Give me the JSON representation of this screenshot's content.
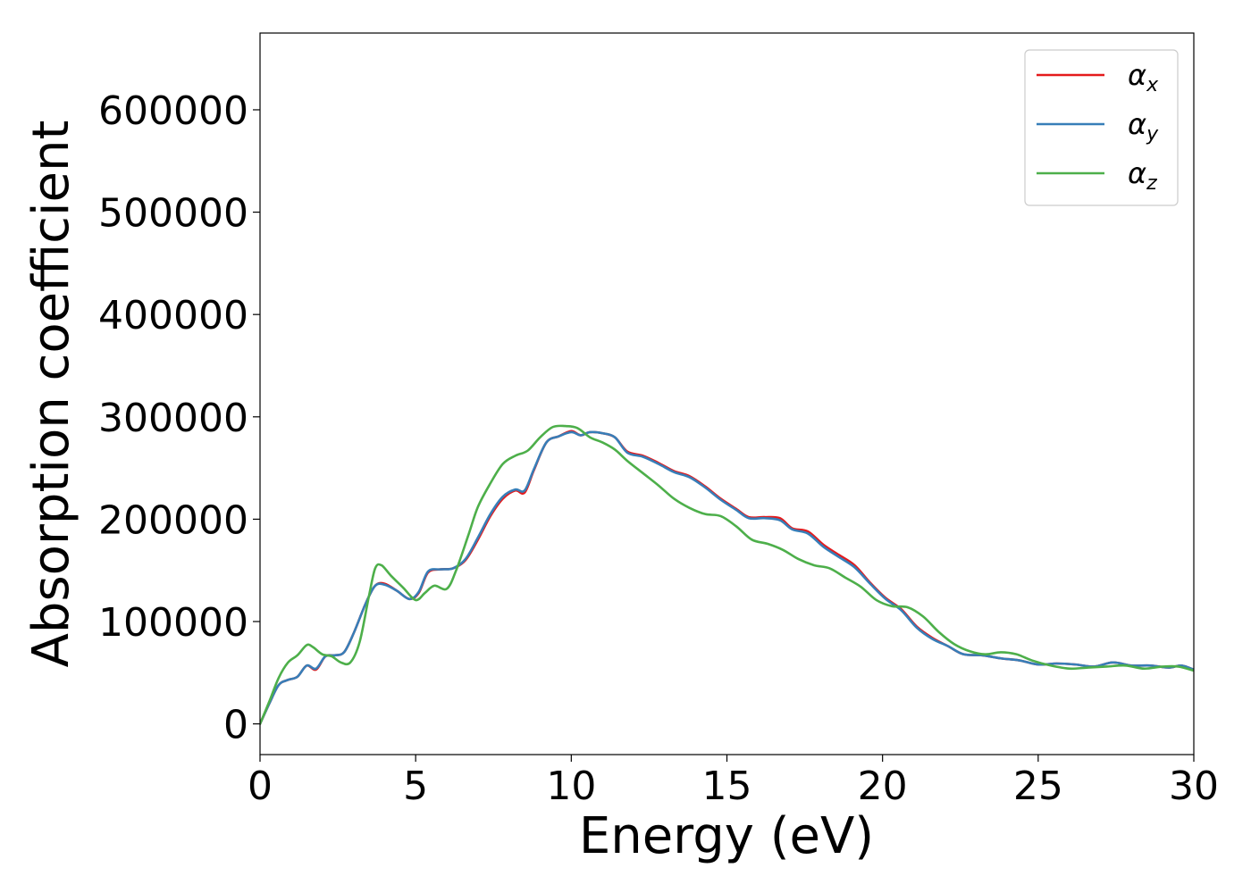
{
  "chart_data": {
    "type": "line",
    "xlabel": "Energy (eV)",
    "ylabel": "Absorption coefficient",
    "xlim": [
      0,
      30
    ],
    "ylim": [
      -30000,
      675000
    ],
    "x_ticks": [
      "0",
      "5",
      "10",
      "15",
      "20",
      "25",
      "30"
    ],
    "y_ticks": [
      "0",
      "100000",
      "200000",
      "300000",
      "400000",
      "500000",
      "600000"
    ],
    "grid": false,
    "legend_position": "top-right",
    "series": [
      {
        "name": "αx",
        "legend_symbol": "α",
        "legend_subscript": "x",
        "color": "#e41a1c",
        "x": [
          0,
          0.3,
          0.6,
          0.9,
          1.2,
          1.5,
          1.8,
          2.1,
          2.4,
          2.7,
          3.0,
          3.4,
          3.7,
          4.0,
          4.4,
          4.8,
          5.1,
          5.4,
          5.8,
          6.2,
          6.6,
          7.0,
          7.4,
          7.8,
          8.2,
          8.5,
          8.8,
          9.2,
          9.6,
          10.0,
          10.3,
          10.6,
          11.0,
          11.4,
          11.8,
          12.3,
          12.8,
          13.3,
          13.8,
          14.3,
          14.8,
          15.3,
          15.7,
          16.2,
          16.7,
          17.1,
          17.6,
          18.1,
          18.6,
          19.1,
          19.6,
          20.1,
          20.6,
          21.1,
          21.6,
          22.1,
          22.6,
          23.2,
          23.8,
          24.4,
          25.0,
          25.6,
          26.2,
          26.8,
          27.4,
          28.0,
          28.6,
          29.2,
          29.6,
          30.0
        ],
        "values": [
          0,
          20000,
          38000,
          43000,
          46000,
          57000,
          53000,
          66000,
          67000,
          70000,
          88000,
          118000,
          135000,
          137000,
          130000,
          122000,
          128000,
          148000,
          151000,
          152000,
          160000,
          180000,
          203000,
          220000,
          228000,
          226000,
          248000,
          275000,
          281000,
          286000,
          282000,
          285000,
          284000,
          280000,
          266000,
          262000,
          255000,
          247000,
          242000,
          232000,
          220000,
          210000,
          202000,
          202000,
          201000,
          191000,
          188000,
          175000,
          165000,
          155000,
          138000,
          123000,
          112000,
          95000,
          84000,
          76000,
          68000,
          67000,
          64000,
          62000,
          58000,
          59000,
          58000,
          56000,
          60000,
          57000,
          57000,
          55000,
          57000,
          53000
        ]
      },
      {
        "name": "αy",
        "legend_symbol": "α",
        "legend_subscript": "y",
        "color": "#377eb8",
        "x": [
          0,
          0.3,
          0.6,
          0.9,
          1.2,
          1.5,
          1.8,
          2.1,
          2.4,
          2.7,
          3.0,
          3.4,
          3.7,
          4.0,
          4.4,
          4.8,
          5.1,
          5.4,
          5.8,
          6.2,
          6.6,
          7.0,
          7.4,
          7.8,
          8.2,
          8.5,
          8.8,
          9.2,
          9.6,
          10.0,
          10.3,
          10.6,
          11.0,
          11.4,
          11.8,
          12.3,
          12.8,
          13.3,
          13.8,
          14.3,
          14.8,
          15.3,
          15.7,
          16.2,
          16.7,
          17.1,
          17.6,
          18.1,
          18.6,
          19.1,
          19.6,
          20.1,
          20.6,
          21.1,
          21.6,
          22.1,
          22.6,
          23.2,
          23.8,
          24.4,
          25.0,
          25.6,
          26.2,
          26.8,
          27.4,
          28.0,
          28.6,
          29.2,
          29.6,
          30.0
        ],
        "values": [
          0,
          20000,
          38000,
          43000,
          46000,
          57000,
          54000,
          66000,
          67000,
          70000,
          88000,
          118000,
          135000,
          136000,
          130000,
          122000,
          129000,
          149000,
          151000,
          152000,
          161000,
          182000,
          205000,
          222000,
          229000,
          228000,
          249000,
          275000,
          281000,
          285000,
          282000,
          285000,
          284000,
          280000,
          265000,
          261000,
          254000,
          246000,
          241000,
          231000,
          219000,
          209000,
          201000,
          201000,
          199000,
          190000,
          186000,
          173000,
          163000,
          153000,
          137000,
          122000,
          111000,
          94000,
          83000,
          76000,
          68000,
          67000,
          64000,
          62000,
          58000,
          59000,
          58000,
          56000,
          60000,
          57000,
          57000,
          55000,
          57000,
          53000
        ]
      },
      {
        "name": "αz",
        "legend_symbol": "α",
        "legend_subscript": "z",
        "color": "#4daf4a",
        "x": [
          0,
          0.3,
          0.6,
          0.9,
          1.2,
          1.5,
          1.7,
          2.0,
          2.3,
          2.6,
          2.9,
          3.2,
          3.5,
          3.7,
          3.9,
          4.2,
          4.6,
          5.0,
          5.3,
          5.6,
          6.0,
          6.3,
          6.7,
          7.0,
          7.4,
          7.8,
          8.2,
          8.6,
          9.0,
          9.4,
          9.8,
          10.2,
          10.6,
          11.0,
          11.4,
          11.8,
          12.3,
          12.8,
          13.3,
          13.8,
          14.3,
          14.8,
          15.3,
          15.8,
          16.3,
          16.8,
          17.3,
          17.8,
          18.3,
          18.8,
          19.3,
          19.8,
          20.3,
          20.8,
          21.3,
          21.8,
          22.3,
          22.8,
          23.3,
          23.8,
          24.3,
          24.8,
          25.4,
          26.0,
          26.6,
          27.2,
          27.8,
          28.4,
          29.0,
          29.5,
          30.0
        ],
        "values": [
          0,
          22000,
          45000,
          60000,
          67000,
          77000,
          75000,
          68000,
          66000,
          60000,
          60000,
          80000,
          125000,
          152000,
          155000,
          145000,
          133000,
          121000,
          128000,
          135000,
          132000,
          150000,
          185000,
          212000,
          235000,
          254000,
          262000,
          267000,
          280000,
          290000,
          291000,
          289000,
          280000,
          275000,
          268000,
          257000,
          245000,
          233000,
          220000,
          211000,
          205000,
          203000,
          193000,
          180000,
          176000,
          170000,
          161000,
          155000,
          152000,
          143000,
          134000,
          121000,
          115000,
          114000,
          105000,
          90000,
          78000,
          71000,
          68000,
          70000,
          68000,
          62000,
          57000,
          54000,
          55000,
          56000,
          57000,
          54000,
          56000,
          56000,
          52000
        ]
      }
    ]
  }
}
